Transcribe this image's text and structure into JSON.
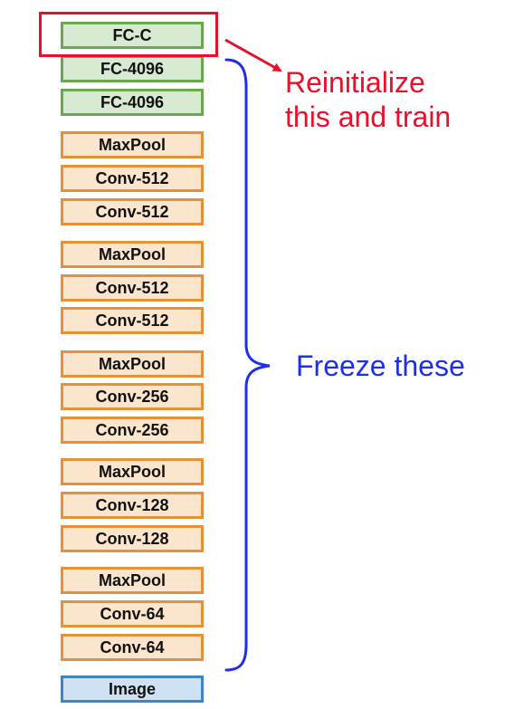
{
  "layers": [
    {
      "label": "FC-C",
      "kind": "fc"
    },
    {
      "label": "FC-4096",
      "kind": "fc"
    },
    {
      "label": "FC-4096",
      "kind": "fc"
    },
    {
      "label": "MaxPool",
      "kind": "conv"
    },
    {
      "label": "Conv-512",
      "kind": "conv"
    },
    {
      "label": "Conv-512",
      "kind": "conv"
    },
    {
      "label": "MaxPool",
      "kind": "conv"
    },
    {
      "label": "Conv-512",
      "kind": "conv"
    },
    {
      "label": "Conv-512",
      "kind": "conv"
    },
    {
      "label": "MaxPool",
      "kind": "conv"
    },
    {
      "label": "Conv-256",
      "kind": "conv"
    },
    {
      "label": "Conv-256",
      "kind": "conv"
    },
    {
      "label": "MaxPool",
      "kind": "conv"
    },
    {
      "label": "Conv-128",
      "kind": "conv"
    },
    {
      "label": "Conv-128",
      "kind": "conv"
    },
    {
      "label": "MaxPool",
      "kind": "conv"
    },
    {
      "label": "Conv-64",
      "kind": "conv"
    },
    {
      "label": "Conv-64",
      "kind": "conv"
    },
    {
      "label": "Image",
      "kind": "img"
    }
  ],
  "annotations": {
    "reinitialize_line1": "Reinitialize",
    "reinitialize_line2": "this and train",
    "freeze": "Freeze these"
  },
  "colors": {
    "fc_fill": "#d9ead3",
    "fc_border": "#6aa84f",
    "conv_fill": "#fce5cd",
    "conv_border": "#e69138",
    "image_fill": "#cfe2f3",
    "image_border": "#3d85c6",
    "reinitialize": "#e8102a",
    "freeze": "#1f2ee8"
  }
}
